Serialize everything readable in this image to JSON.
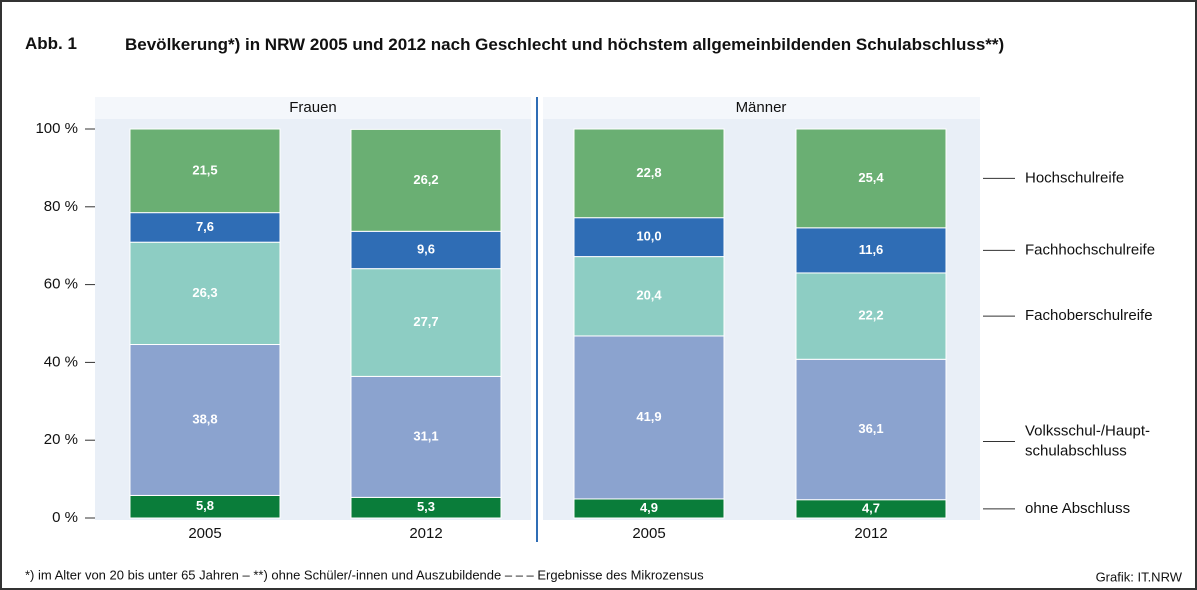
{
  "chart_data": {
    "type": "stacked_bar",
    "label": "Abb. 1",
    "title": "Bevölkerung*) in NRW 2005 und 2012 nach Geschlecht und höchstem allgemeinbildenden Schulabschluss**)",
    "groups": [
      "Frauen",
      "Männer"
    ],
    "categories": [
      "2005",
      "2012",
      "2005",
      "2012"
    ],
    "series": [
      {
        "name": "ohne Abschluss",
        "color": "#0a7d3a",
        "values": [
          5.8,
          5.3,
          4.9,
          4.7
        ],
        "value_labels": [
          "5,8",
          "5,3",
          "4,9",
          "4,7"
        ]
      },
      {
        "name": "Volksschul-/Haupt-\nschulabschluss",
        "color": "#8ba3cf",
        "values": [
          38.8,
          31.1,
          41.9,
          36.1
        ],
        "value_labels": [
          "38,8",
          "31,1",
          "41,9",
          "36,1"
        ]
      },
      {
        "name": "Fachoberschulreife",
        "color": "#8dcdc3",
        "values": [
          26.3,
          27.7,
          20.4,
          22.2
        ],
        "value_labels": [
          "26,3",
          "27,7",
          "20,4",
          "22,2"
        ]
      },
      {
        "name": "Fachhochschulreife",
        "color": "#2f6db5",
        "values": [
          7.6,
          9.6,
          10.0,
          11.6
        ],
        "value_labels": [
          "7,6",
          "9,6",
          "10,0",
          "11,6"
        ]
      },
      {
        "name": "Hochschulreife",
        "color": "#6aaf73",
        "values": [
          21.5,
          26.2,
          22.8,
          25.4
        ],
        "value_labels": [
          "21,5",
          "26,2",
          "22,8",
          "25,4"
        ]
      }
    ],
    "ylim": [
      0,
      100
    ],
    "yticks": [
      {
        "value": 0,
        "label": "0 %"
      },
      {
        "value": 20,
        "label": "20 %"
      },
      {
        "value": 40,
        "label": "40 %"
      },
      {
        "value": 60,
        "label": "60 %"
      },
      {
        "value": 80,
        "label": "80 %"
      },
      {
        "value": 100,
        "label": "100 %"
      }
    ],
    "footnote": "*) im Alter von 20 bis unter 65 Jahren – **) ohne Schüler/-innen und Auszubildende – – – Ergebnisse des Mikrozensus",
    "source": "Grafik: IT.NRW"
  }
}
